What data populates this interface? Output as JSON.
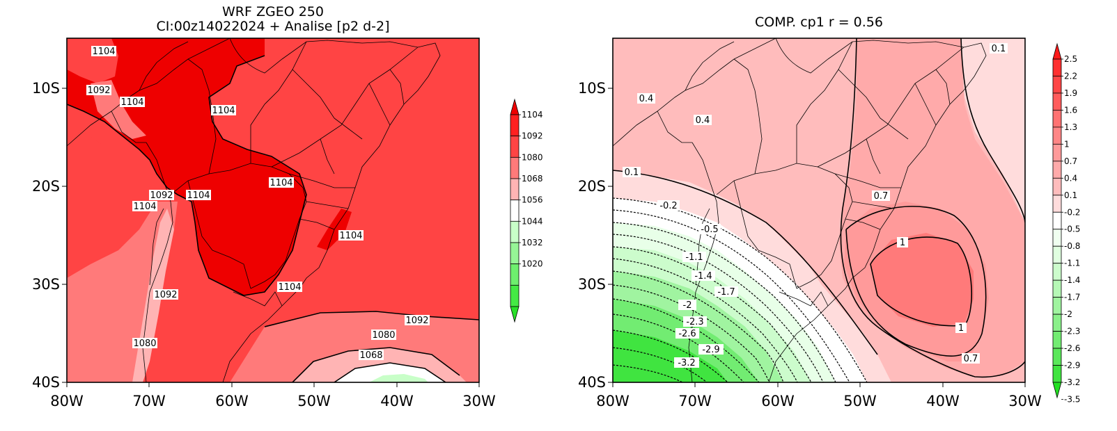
{
  "left_map": {
    "title_line1": "WRF ZGEO 250",
    "title_line2": "CI:00z14022024 + Analise  [p2 d-2]",
    "x_ticks": [
      "80W",
      "70W",
      "60W",
      "50W",
      "40W",
      "30W"
    ],
    "y_ticks": [
      "10S",
      "20S",
      "30S",
      "40S"
    ],
    "contour_labels": [
      "1104",
      "1092",
      "1104",
      "1104",
      "1104",
      "1092",
      "1104",
      "1104",
      "1104",
      "1104",
      "1092",
      "1080",
      "1092",
      "1080",
      "1068"
    ],
    "colorbar": {
      "labels": [
        "1104",
        "1092",
        "1080",
        "1068",
        "1056",
        "1044",
        "1032",
        "1020"
      ],
      "colors": [
        "#ee0000",
        "#ff2020",
        "#ff4444",
        "#ff7a7a",
        "#ffb4b4",
        "#ffffff",
        "#c8ffc8",
        "#96f596",
        "#6eef6e",
        "#44ea44",
        "#28e028"
      ]
    }
  },
  "right_map": {
    "title": "COMP. cp1  r =  0.56",
    "x_ticks": [
      "80W",
      "70W",
      "60W",
      "50W",
      "40W",
      "30W"
    ],
    "y_ticks": [
      "10S",
      "20S",
      "30S",
      "40S"
    ],
    "contour_labels": [
      "0.4",
      "0.4",
      "0.1",
      "0.1",
      "-0.2",
      "-0.5",
      "0.7",
      "1",
      "-1.1",
      "-1.4",
      "-1.7",
      "-2",
      "-2.3",
      "-2.6",
      "-2.9",
      "-3.2",
      "1",
      "0.7"
    ],
    "colorbar": {
      "labels": [
        "2.5",
        "2.2",
        "1.9",
        "1.6",
        "1.3",
        "1",
        "0.7",
        "0.4",
        "0.1",
        "-0.2",
        "-0.5",
        "-0.8",
        "-1.1",
        "-1.4",
        "-1.7",
        "-2",
        "-2.3",
        "-2.6",
        "-2.9",
        "-3.2",
        "-3.5"
      ],
      "colors": [
        "#ff1a1a",
        "#ff3030",
        "#ff4646",
        "#ff5c5c",
        "#ff7272",
        "#ff8686",
        "#ff9a9a",
        "#ffaaaa",
        "#ffbcbc",
        "#ffdcdc",
        "#ffffff",
        "#f0fff0",
        "#e0ffe0",
        "#ccfccc",
        "#b6f8b6",
        "#a0f4a0",
        "#8af08a",
        "#72ec72",
        "#5ae85a",
        "#40e440",
        "#22e022"
      ]
    }
  }
}
